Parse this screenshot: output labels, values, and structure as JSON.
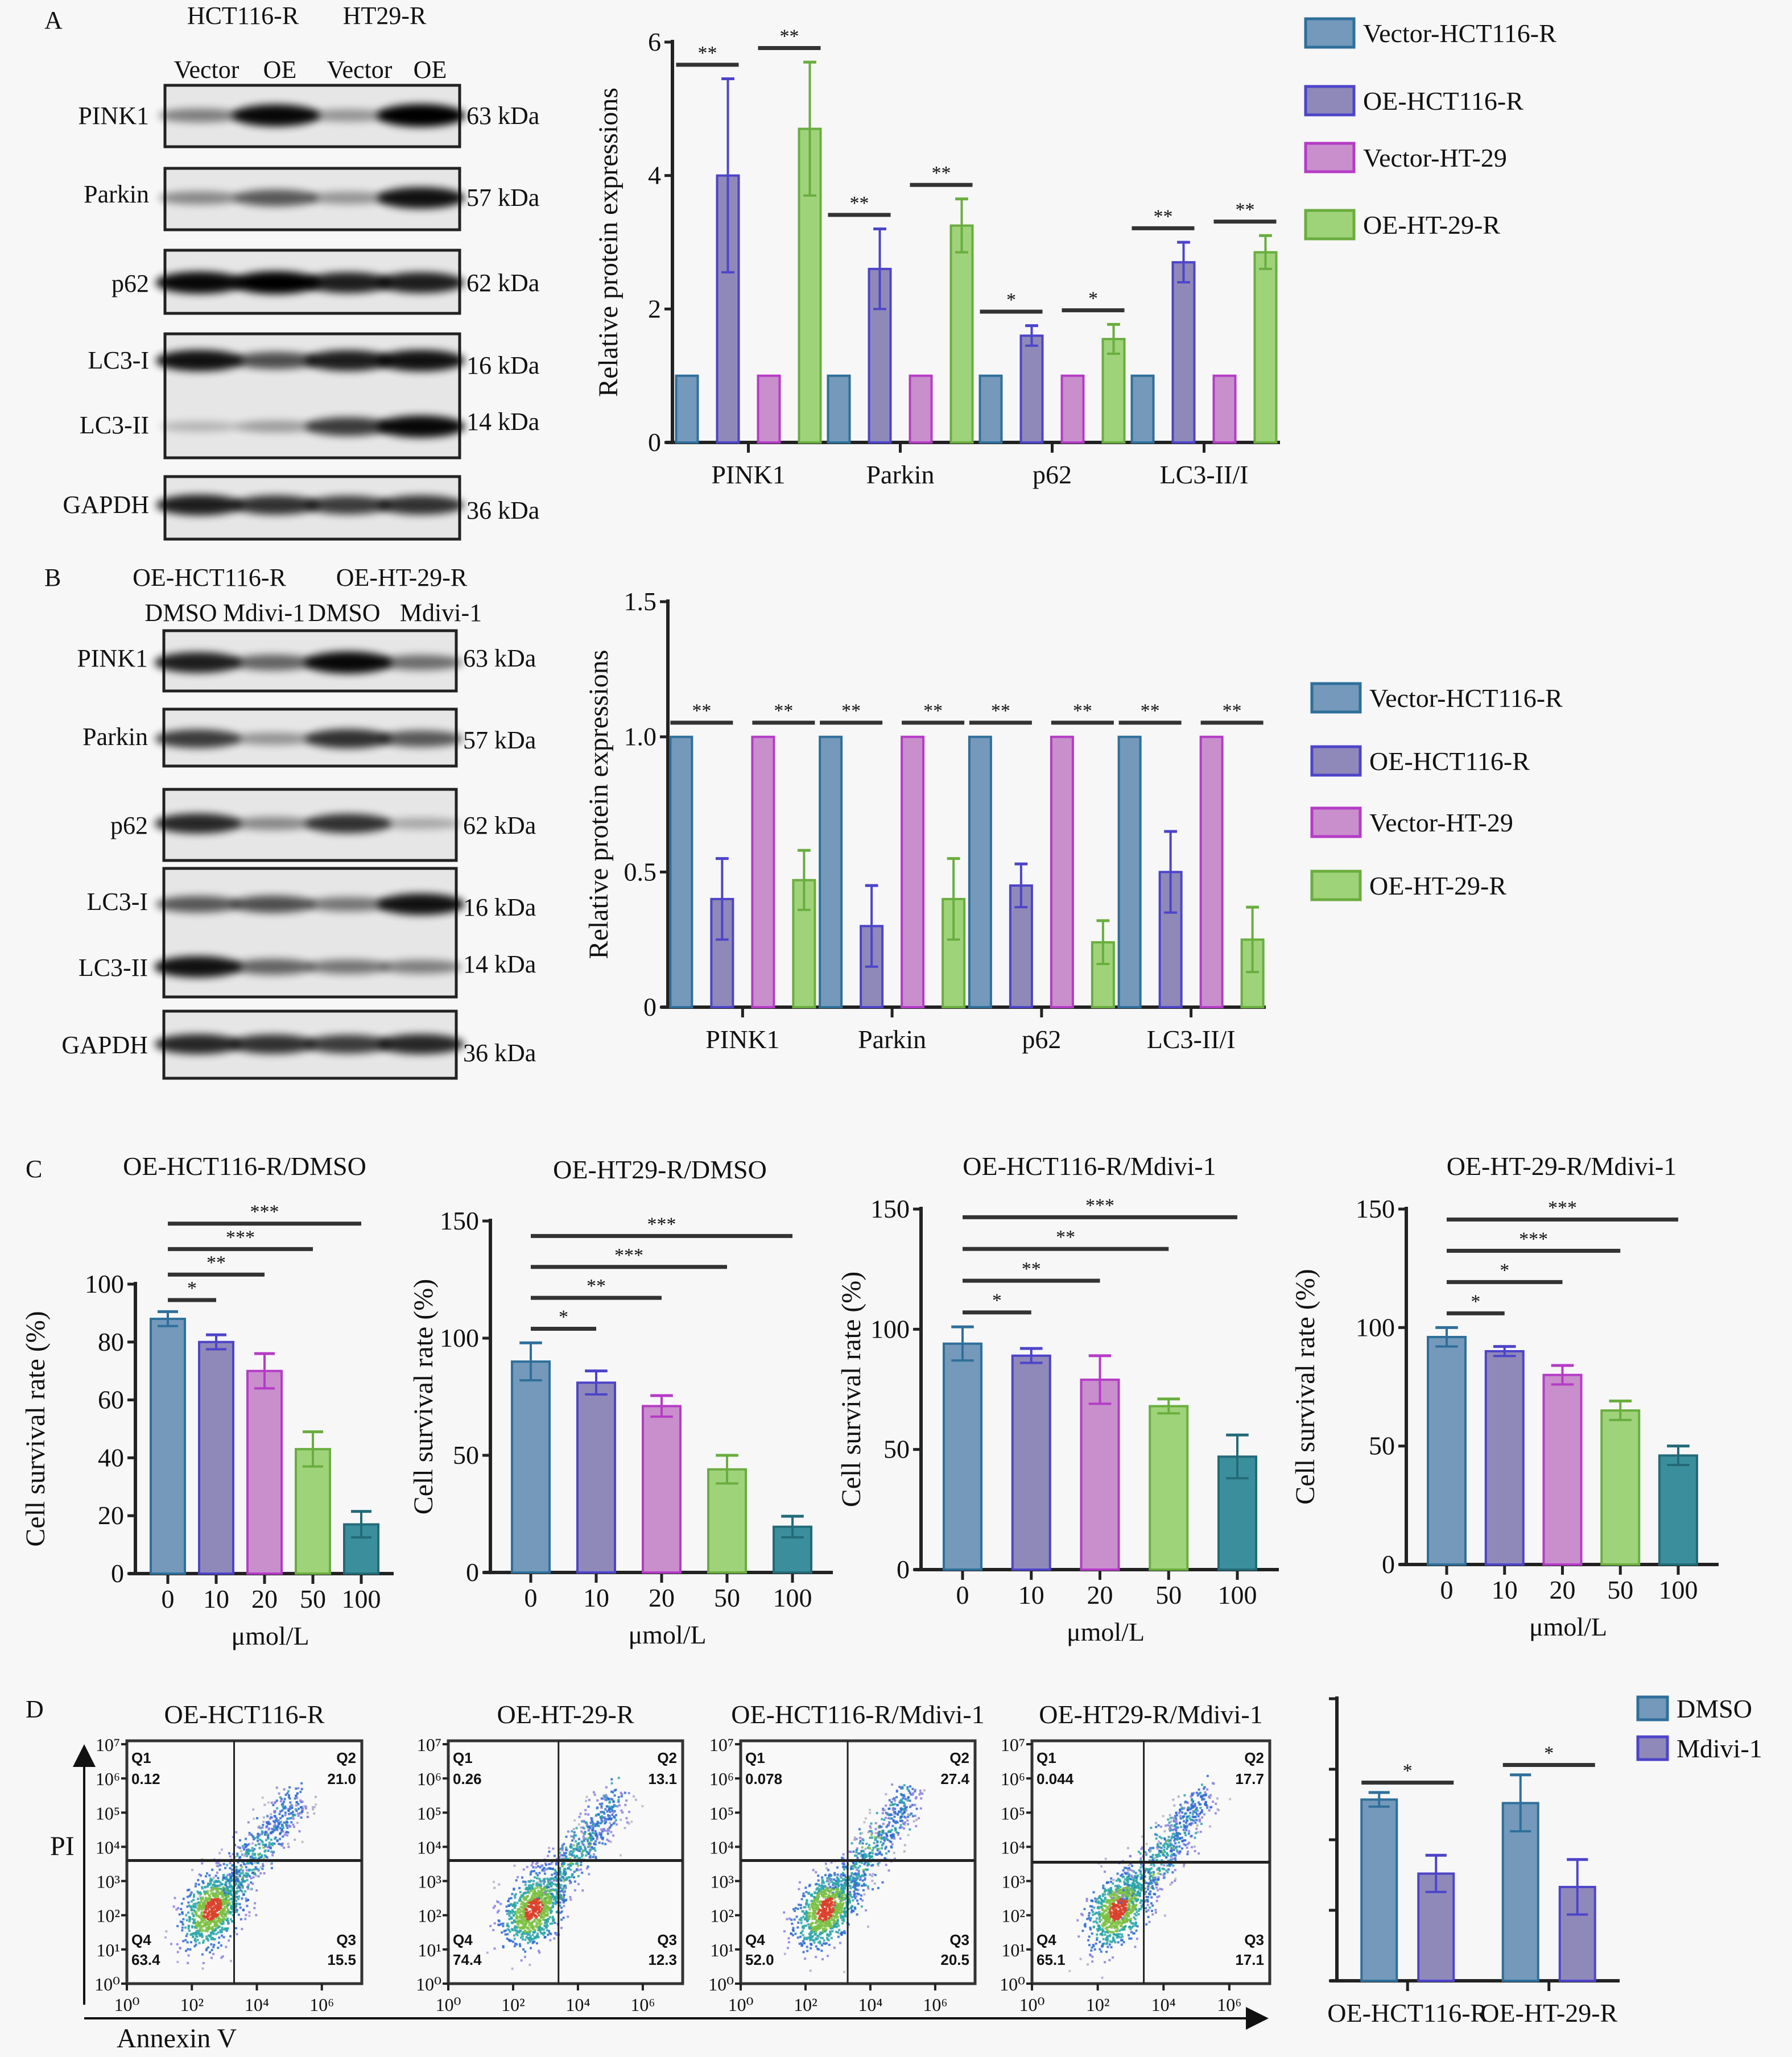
{
  "panels": {
    "a": "A",
    "b": "B",
    "c": "C",
    "d": "D"
  },
  "panel_a": {
    "groups": [
      "HCT116-R",
      "HT29-R"
    ],
    "lanes": [
      "Vector",
      "OE",
      "Vector",
      "OE"
    ],
    "rows": [
      {
        "label": "PINK1",
        "kda": "63 kDa"
      },
      {
        "label": "Parkin",
        "kda": "57 kDa"
      },
      {
        "label": "p62",
        "kda": "62 kDa"
      },
      {
        "label": "LC3-I",
        "kda": "16 kDa"
      },
      {
        "label": "LC3-II",
        "kda": "14 kDa"
      },
      {
        "label": "GAPDH",
        "kda": "36 kDa"
      }
    ]
  },
  "panel_b": {
    "groups": [
      "OE-HCT116-R",
      "OE-HT-29-R"
    ],
    "lanes": [
      "DMSO",
      "Mdivi-1",
      "DMSO",
      "Mdivi-1"
    ],
    "rows": [
      {
        "label": "PINK1",
        "kda": "63 kDa"
      },
      {
        "label": "Parkin",
        "kda": "57 kDa"
      },
      {
        "label": "p62",
        "kda": "62 kDa"
      },
      {
        "label": "LC3-I",
        "kda": "16 kDa"
      },
      {
        "label": "LC3-II",
        "kda": "14 kDa"
      },
      {
        "label": "GAPDH",
        "kda": "36 kDa"
      }
    ]
  },
  "panel_d": {
    "x_axis_label": "Annexin V",
    "y_axis_label": "PI",
    "quadrant_names": [
      "Q1",
      "Q2",
      "Q3",
      "Q4"
    ],
    "y_ticks": [
      "10⁰",
      "10¹",
      "10²",
      "10³",
      "10⁴",
      "10⁵",
      "10⁶",
      "10⁷"
    ],
    "x_ticks": [
      "10⁰",
      "10²",
      "10⁴",
      "10⁶"
    ],
    "plots": [
      {
        "title": "OE-HCT116-R",
        "q1": "0.12",
        "q2": "21.0",
        "q3": "15.5",
        "q4": "63.4"
      },
      {
        "title": "OE-HT-29-R",
        "q1": "0.26",
        "q2": "13.1",
        "q3": "12.3",
        "q4": "74.4"
      },
      {
        "title": "OE-HCT116-R/Mdivi-1",
        "q1": "0.078",
        "q2": "27.4",
        "q3": "20.5",
        "q4": "52.0"
      },
      {
        "title": "OE-HT29-R/Mdivi-1",
        "q1": "0.044",
        "q2": "17.7",
        "q3": "17.1",
        "q4": "65.1"
      }
    ]
  },
  "colors": {
    "blue": "#7499bb",
    "purple": "#8f89b9",
    "pink": "#c88fcc",
    "green": "#9fd37a",
    "teal": "#3b8f9c"
  },
  "chart_data": [
    {
      "type": "bar",
      "panel": "A",
      "ylabel": "Relative protein expressions",
      "xlabel": "",
      "ylim": [
        0,
        6
      ],
      "yticks": [
        "0",
        "2",
        "4",
        "6"
      ],
      "categories": [
        "PINK1",
        "Parkin",
        "p62",
        "LC3-II/I"
      ],
      "legend_position": "right",
      "series": [
        {
          "name": "Vector-HCT116-R",
          "color": "#7499bb",
          "values": [
            1,
            1,
            1,
            1
          ],
          "errors": [
            0,
            0,
            0,
            0
          ]
        },
        {
          "name": "OE-HCT116-R",
          "color": "#8f89b9",
          "values": [
            4.0,
            2.6,
            1.6,
            2.7
          ],
          "errors": [
            1.45,
            0.6,
            0.15,
            0.3
          ]
        },
        {
          "name": "Vector-HT-29",
          "color": "#c88fcc",
          "values": [
            1,
            1,
            1,
            1
          ],
          "errors": [
            0,
            0,
            0,
            0
          ]
        },
        {
          "name": "OE-HT-29-R",
          "color": "#9fd37a",
          "values": [
            4.7,
            3.25,
            1.55,
            2.85
          ],
          "errors": [
            1.0,
            0.4,
            0.22,
            0.25
          ]
        }
      ],
      "significance": [
        {
          "category": 0,
          "pair": [
            0,
            1
          ],
          "label": "**"
        },
        {
          "category": 0,
          "pair": [
            2,
            3
          ],
          "label": "**"
        },
        {
          "category": 1,
          "pair": [
            0,
            1
          ],
          "label": "**"
        },
        {
          "category": 1,
          "pair": [
            2,
            3
          ],
          "label": "**"
        },
        {
          "category": 2,
          "pair": [
            0,
            1
          ],
          "label": "*"
        },
        {
          "category": 2,
          "pair": [
            2,
            3
          ],
          "label": "*"
        },
        {
          "category": 3,
          "pair": [
            0,
            1
          ],
          "label": "**"
        },
        {
          "category": 3,
          "pair": [
            2,
            3
          ],
          "label": "**"
        }
      ]
    },
    {
      "type": "bar",
      "panel": "B",
      "ylabel": "Relative protein expressions",
      "xlabel": "",
      "ylim": [
        0,
        1.5
      ],
      "yticks": [
        "0",
        "0.5",
        "1.0",
        "1.5"
      ],
      "categories": [
        "PINK1",
        "Parkin",
        "p62",
        "LC3-II/I"
      ],
      "legend_position": "right",
      "series": [
        {
          "name": "Vector-HCT116-R",
          "color": "#7499bb",
          "values": [
            1,
            1,
            1,
            1
          ],
          "errors": [
            0,
            0,
            0,
            0
          ]
        },
        {
          "name": "OE-HCT116-R",
          "color": "#8f89b9",
          "values": [
            0.4,
            0.3,
            0.45,
            0.5
          ],
          "errors": [
            0.15,
            0.15,
            0.08,
            0.15
          ]
        },
        {
          "name": "Vector-HT-29",
          "color": "#c88fcc",
          "values": [
            1,
            1,
            1,
            1
          ],
          "errors": [
            0,
            0,
            0,
            0
          ]
        },
        {
          "name": "OE-HT-29-R",
          "color": "#9fd37a",
          "values": [
            0.47,
            0.4,
            0.24,
            0.25
          ],
          "errors": [
            0.11,
            0.15,
            0.08,
            0.12
          ]
        }
      ],
      "significance": [
        {
          "category": 0,
          "pair": [
            0,
            1
          ],
          "label": "**"
        },
        {
          "category": 0,
          "pair": [
            2,
            3
          ],
          "label": "**"
        },
        {
          "category": 1,
          "pair": [
            0,
            1
          ],
          "label": "**"
        },
        {
          "category": 1,
          "pair": [
            2,
            3
          ],
          "label": "**"
        },
        {
          "category": 2,
          "pair": [
            0,
            1
          ],
          "label": "**"
        },
        {
          "category": 2,
          "pair": [
            2,
            3
          ],
          "label": "**"
        },
        {
          "category": 3,
          "pair": [
            0,
            1
          ],
          "label": "**"
        },
        {
          "category": 3,
          "pair": [
            2,
            3
          ],
          "label": "**"
        }
      ]
    },
    {
      "type": "bar",
      "panel": "C",
      "title": "OE-HCT116-R/DMSO",
      "ylabel": "Cell survival rate (%)",
      "xlabel": "μmol/L",
      "ylim": [
        0,
        100
      ],
      "yticks": [
        "0",
        "20",
        "40",
        "60",
        "80",
        "100"
      ],
      "categories": [
        "0",
        "10",
        "20",
        "50",
        "100"
      ],
      "bar_colors": [
        "#7499bb",
        "#8f89b9",
        "#c88fcc",
        "#9fd37a",
        "#3b8f9c"
      ],
      "series": [
        {
          "values": [
            88,
            80,
            70,
            43,
            17
          ],
          "errors": [
            2.5,
            2.5,
            6,
            6,
            4.5
          ]
        }
      ],
      "significance": [
        {
          "pair": [
            0,
            1
          ],
          "label": "*"
        },
        {
          "pair": [
            0,
            2
          ],
          "label": "**"
        },
        {
          "pair": [
            0,
            3
          ],
          "label": "***"
        },
        {
          "pair": [
            0,
            4
          ],
          "label": "***"
        }
      ]
    },
    {
      "type": "bar",
      "panel": "C",
      "title": "OE-HT29-R/DMSO",
      "ylabel": "Cell survival rate (%)",
      "xlabel": "μmol/L",
      "ylim": [
        0,
        150
      ],
      "yticks": [
        "0",
        "50",
        "100",
        "150"
      ],
      "categories": [
        "0",
        "10",
        "20",
        "50",
        "100"
      ],
      "bar_colors": [
        "#7499bb",
        "#8f89b9",
        "#c88fcc",
        "#9fd37a",
        "#3b8f9c"
      ],
      "series": [
        {
          "values": [
            90,
            81,
            71,
            44,
            19.5
          ],
          "errors": [
            8,
            5,
            4.5,
            6,
            4.5
          ]
        }
      ],
      "significance": [
        {
          "pair": [
            0,
            1
          ],
          "label": "*"
        },
        {
          "pair": [
            0,
            2
          ],
          "label": "**"
        },
        {
          "pair": [
            0,
            3
          ],
          "label": "***"
        },
        {
          "pair": [
            0,
            4
          ],
          "label": "***"
        }
      ]
    },
    {
      "type": "bar",
      "panel": "C",
      "title": "OE-HCT116-R/Mdivi-1",
      "ylabel": "Cell survival rate (%)",
      "xlabel": "μmol/L",
      "ylim": [
        0,
        150
      ],
      "yticks": [
        "0",
        "50",
        "100",
        "150"
      ],
      "categories": [
        "0",
        "10",
        "20",
        "50",
        "100"
      ],
      "bar_colors": [
        "#7499bb",
        "#8f89b9",
        "#c88fcc",
        "#9fd37a",
        "#3b8f9c"
      ],
      "series": [
        {
          "values": [
            94,
            89,
            79,
            68,
            47
          ],
          "errors": [
            7,
            3,
            10,
            3,
            9
          ]
        }
      ],
      "significance": [
        {
          "pair": [
            0,
            1
          ],
          "label": "*"
        },
        {
          "pair": [
            0,
            2
          ],
          "label": "**"
        },
        {
          "pair": [
            0,
            3
          ],
          "label": "**"
        },
        {
          "pair": [
            0,
            4
          ],
          "label": "***"
        }
      ]
    },
    {
      "type": "bar",
      "panel": "C",
      "title": "OE-HT-29-R/Mdivi-1",
      "ylabel": "Cell survival rate (%)",
      "xlabel": "μmol/L",
      "ylim": [
        0,
        150
      ],
      "yticks": [
        "0",
        "50",
        "100",
        "150"
      ],
      "categories": [
        "0",
        "10",
        "20",
        "50",
        "100"
      ],
      "bar_colors": [
        "#7499bb",
        "#8f89b9",
        "#c88fcc",
        "#9fd37a",
        "#3b8f9c"
      ],
      "series": [
        {
          "values": [
            96,
            90,
            80,
            65,
            46
          ],
          "errors": [
            4,
            2,
            4,
            4,
            4
          ]
        }
      ],
      "significance": [
        {
          "pair": [
            0,
            1
          ],
          "label": "*"
        },
        {
          "pair": [
            0,
            2
          ],
          "label": "*"
        },
        {
          "pair": [
            0,
            3
          ],
          "label": "***"
        },
        {
          "pair": [
            0,
            4
          ],
          "label": "***"
        }
      ]
    },
    {
      "type": "bar",
      "panel": "D",
      "ylabel": "",
      "xlabel": "",
      "ylim": [
        0,
        4
      ],
      "yticks": [
        "",
        "",
        "",
        "",
        ""
      ],
      "categories": [
        "OE-HCT116-R",
        "OE-HT-29-R"
      ],
      "legend_position": "top-right",
      "series": [
        {
          "name": "DMSO",
          "color": "#7499bb",
          "values": [
            2.57,
            2.52
          ],
          "errors": [
            0.1,
            0.4
          ]
        },
        {
          "name": "Mdivi-1",
          "color": "#8f89b9",
          "values": [
            1.52,
            1.33
          ],
          "errors": [
            0.26,
            0.39
          ]
        }
      ],
      "significance": [
        {
          "category": 0,
          "pair": [
            0,
            1
          ],
          "label": "*"
        },
        {
          "category": 1,
          "pair": [
            0,
            1
          ],
          "label": "*"
        }
      ]
    }
  ]
}
